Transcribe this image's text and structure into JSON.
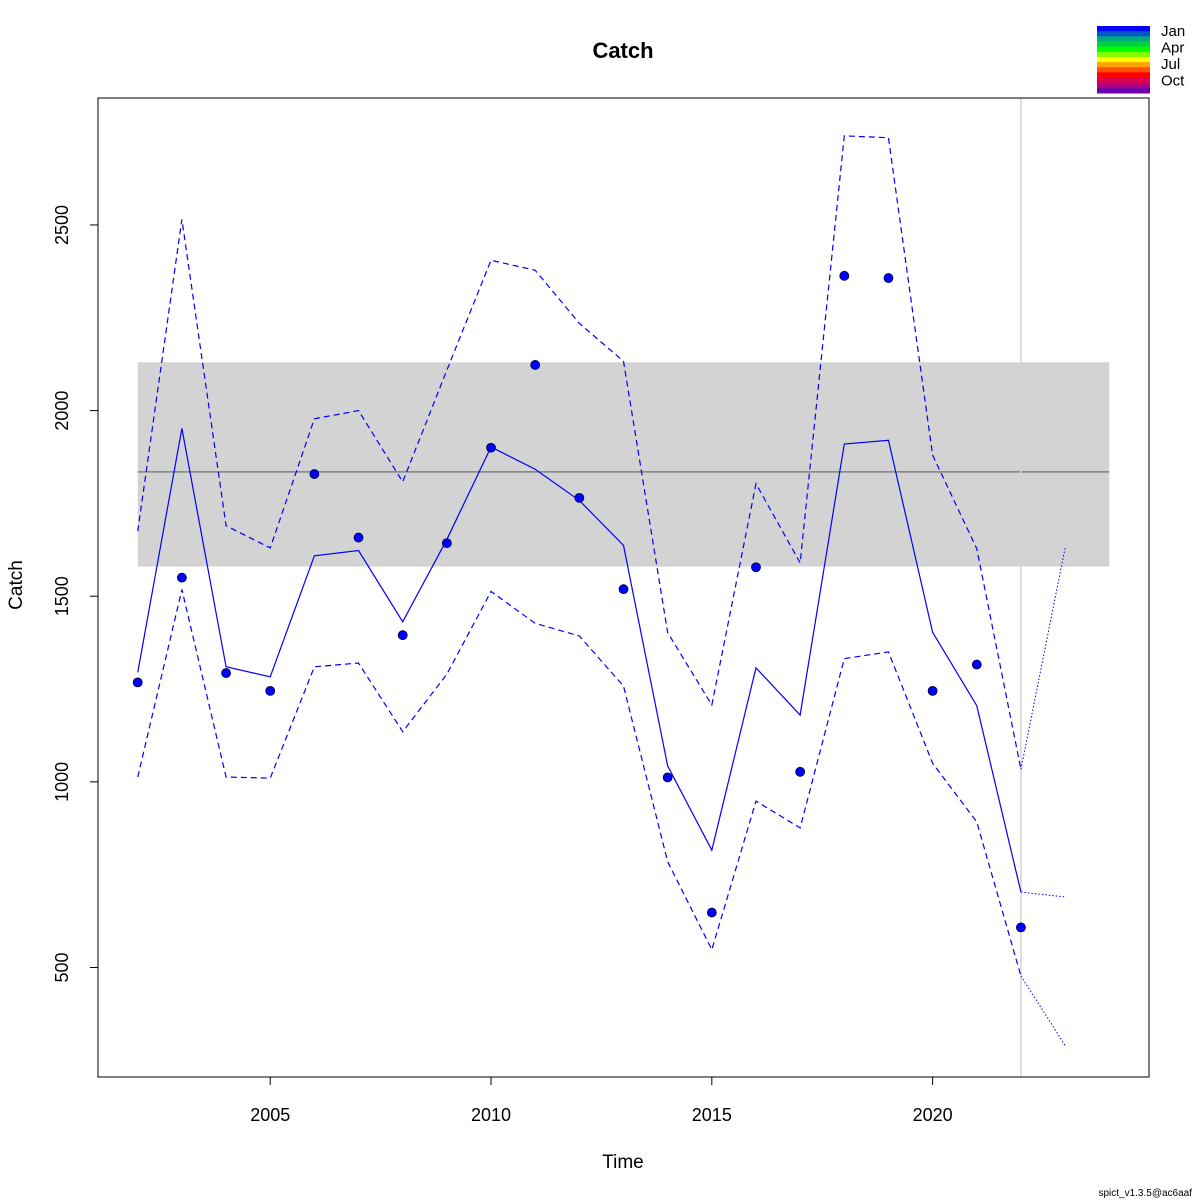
{
  "chart_data": {
    "type": "line",
    "title": "Catch",
    "xlabel": "Time",
    "ylabel": "Catch",
    "xlim": [
      2001.1,
      2024.9
    ],
    "ylim": [
      205,
      2842
    ],
    "x_ticks": [
      2005,
      2010,
      2015,
      2020
    ],
    "y_ticks": [
      500,
      1000,
      1500,
      2000,
      2500
    ],
    "reference_band": {
      "lower": 1580,
      "upper": 2130,
      "color": "#d3d3d3"
    },
    "reference_line": {
      "value": 1835,
      "color": "#808080"
    },
    "vertical_line": {
      "x": 2022,
      "color": "#d3d3d3"
    },
    "series": [
      {
        "style": "points",
        "color": "#0000ff",
        "x": [
          2002,
          2003,
          2004,
          2005,
          2006,
          2007,
          2008,
          2009,
          2010,
          2011,
          2012,
          2013,
          2014,
          2015,
          2016,
          2017,
          2018,
          2019,
          2020,
          2021,
          2022
        ],
        "values": [
          1268,
          1550,
          1293,
          1245,
          1829,
          1658,
          1395,
          1643,
          1900,
          2123,
          1765,
          1519,
          1012,
          648,
          1578,
          1027,
          2363,
          2357,
          1245,
          1316,
          608
        ]
      },
      {
        "style": "solid",
        "color": "#0000ff",
        "x": [
          2002,
          2003,
          2004,
          2005,
          2006,
          2007,
          2008,
          2009,
          2010,
          2011,
          2012,
          2013,
          2014,
          2015,
          2016,
          2017,
          2018,
          2019,
          2020,
          2021,
          2022
        ],
        "values": [
          1295,
          1952,
          1310,
          1283,
          1609,
          1623,
          1431,
          1653,
          1902,
          1842,
          1758,
          1637,
          1043,
          816,
          1307,
          1180,
          1910,
          1920,
          1403,
          1205,
          703
        ]
      },
      {
        "style": "dashed",
        "color": "#0000ff",
        "x": [
          2002,
          2003,
          2004,
          2005,
          2006,
          2007,
          2008,
          2009,
          2010,
          2011,
          2012,
          2013,
          2014,
          2015,
          2016,
          2017,
          2018,
          2019,
          2020,
          2021,
          2022
        ],
        "values": [
          1675,
          2515,
          1690,
          1630,
          1978,
          2000,
          1808,
          2109,
          2405,
          2378,
          2235,
          2133,
          1402,
          1207,
          1803,
          1590,
          2740,
          2735,
          1880,
          1628,
          1034
        ]
      },
      {
        "style": "dashed",
        "color": "#0000ff",
        "x": [
          2002,
          2003,
          2004,
          2005,
          2006,
          2007,
          2008,
          2009,
          2010,
          2011,
          2012,
          2013,
          2014,
          2015,
          2016,
          2017,
          2018,
          2019,
          2020,
          2021,
          2022
        ],
        "values": [
          1013,
          1518,
          1013,
          1010,
          1310,
          1320,
          1135,
          1290,
          1513,
          1427,
          1393,
          1258,
          785,
          548,
          948,
          876,
          1332,
          1350,
          1050,
          892,
          477
        ]
      },
      {
        "style": "dotted",
        "color": "#0000ff",
        "x": [
          2022,
          2023
        ],
        "values": [
          703,
          690
        ]
      },
      {
        "style": "dotted",
        "color": "#0000ff",
        "x": [
          2022,
          2023
        ],
        "values": [
          1034,
          1630
        ]
      },
      {
        "style": "dotted",
        "color": "#0000ff",
        "x": [
          2022,
          2023
        ],
        "values": [
          477,
          290
        ]
      }
    ],
    "legend": {
      "position": "top-right",
      "labels": [
        "Jan",
        "Apr",
        "Jul",
        "Oct"
      ],
      "colors": [
        "#0000ff",
        "#0055c8",
        "#00aa80",
        "#00d040",
        "#00ff00",
        "#80ff00",
        "#ffff00",
        "#ffa500",
        "#ff5000",
        "#ff0000",
        "#e0004a",
        "#b00080",
        "#7000a8"
      ]
    },
    "footer": "spict_v1.3.5@ac6aaf"
  }
}
